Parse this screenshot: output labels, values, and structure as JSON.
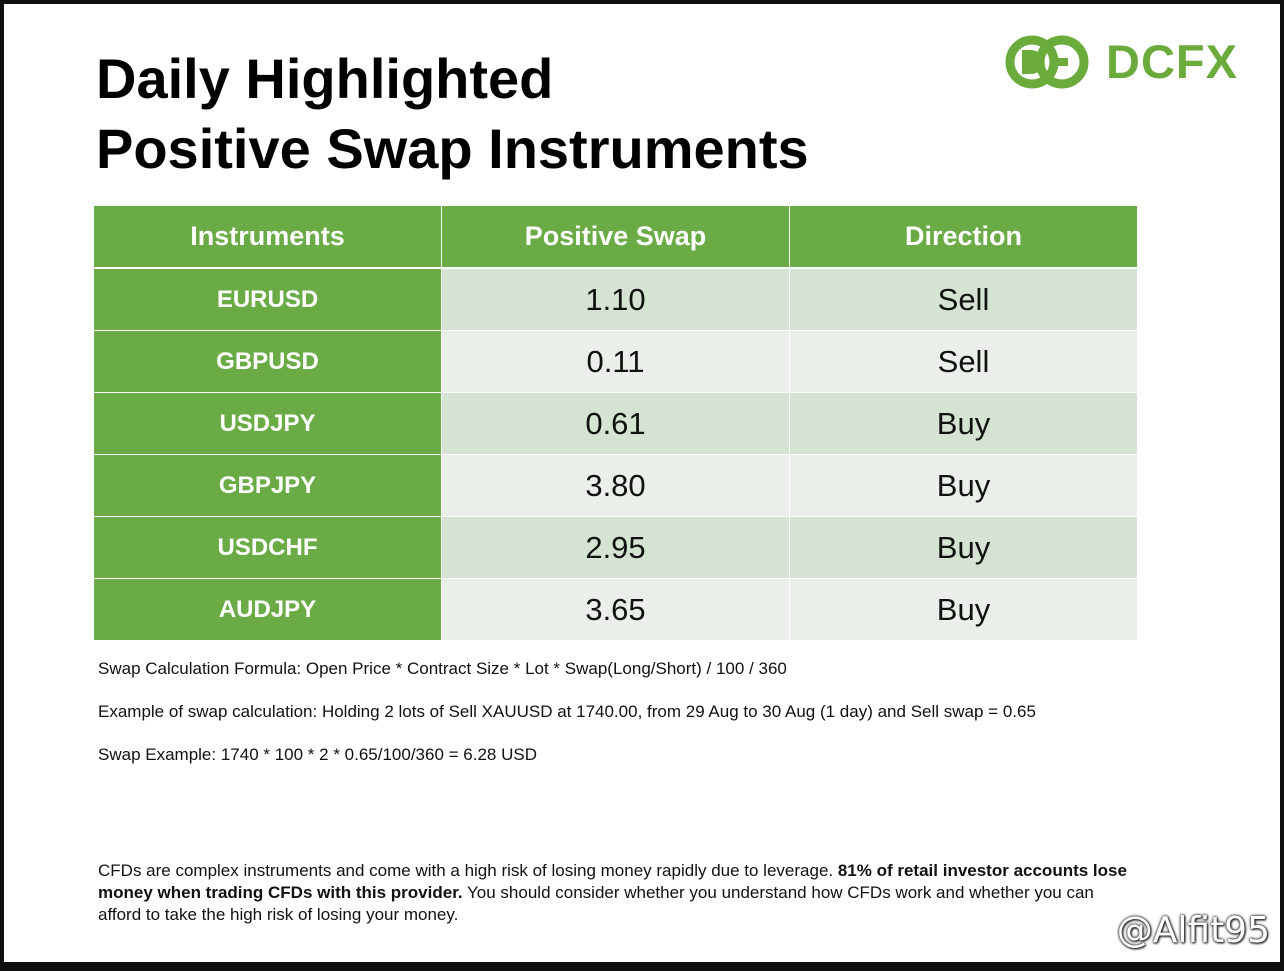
{
  "title": {
    "line1": "Daily Highlighted",
    "line2": "Positive Swap Instruments"
  },
  "logo": {
    "text": "DCFX",
    "icon": "dcfx-logo-icon",
    "color": "#6aab3c"
  },
  "table": {
    "headers": [
      "Instruments",
      "Positive Swap",
      "Direction"
    ],
    "rows": [
      {
        "instrument": "EURUSD",
        "swap": "1.10",
        "direction": "Sell"
      },
      {
        "instrument": "GBPUSD",
        "swap": "0.11",
        "direction": "Sell"
      },
      {
        "instrument": "USDJPY",
        "swap": "0.61",
        "direction": "Buy"
      },
      {
        "instrument": "GBPJPY",
        "swap": "3.80",
        "direction": "Buy"
      },
      {
        "instrument": "USDCHF",
        "swap": "2.95",
        "direction": "Buy"
      },
      {
        "instrument": "AUDJPY",
        "swap": "3.65",
        "direction": "Buy"
      }
    ],
    "colors": {
      "header_green": "#6aab46",
      "row_dark": "#d4e3d2",
      "row_light": "#ebefea"
    }
  },
  "notes": {
    "formula": "Swap Calculation Formula: Open Price * Contract Size * Lot * Swap(Long/Short) / 100 / 360",
    "example": "Example of swap calculation: Holding 2 lots of Sell XAUUSD at 1740.00, from 29 Aug to 30 Aug (1 day) and Sell swap = 0.65",
    "swap_example": "Swap Example: 1740 * 100 * 2 * 0.65/100/360 = 6.28 USD"
  },
  "disclaimer": {
    "part1": "CFDs are complex instruments and come with a high risk of losing money rapidly due to leverage. ",
    "bold": "81% of retail investor accounts lose money when trading CFDs with this provider.",
    "part2": " You should consider whether you understand how CFDs work and whether you can afford to take the high risk of losing your money."
  },
  "watermark": {
    "text": "@Alfit95",
    "icon": "platform-logo-icon"
  }
}
